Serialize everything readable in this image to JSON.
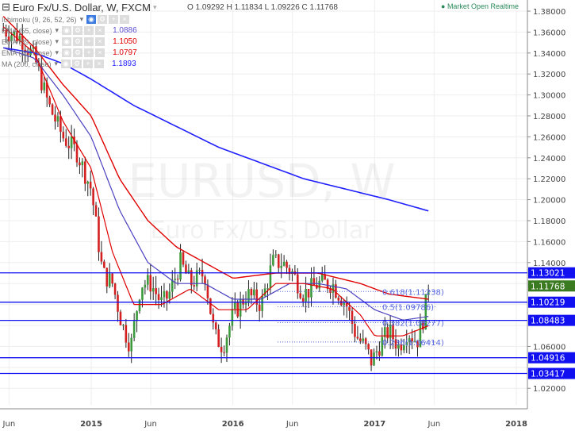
{
  "header": {
    "title": "Euro Fx/U.S. Dollar, W, FXCM",
    "ohlc": "O 1.09292  H 1.11834  L 1.09226  C 1.11768",
    "status": "Market Open  Realtime"
  },
  "indicators": [
    {
      "label": "Ichimoku (9, 26, 52, 26)",
      "value": ""
    },
    {
      "label": "EMA (55, close)",
      "value": "1.0886",
      "color": "#5a4fcf"
    },
    {
      "label": "EMA (89, close)",
      "value": "1.1050",
      "color": "#e00000"
    },
    {
      "label": "EMA (21, close)",
      "value": "1.0797",
      "color": "#e00000"
    },
    {
      "label": "MA (200, close)",
      "value": "1.1893",
      "color": "#2020ff"
    }
  ],
  "watermark": {
    "symbol": "EURUSD, W",
    "name": "Euro Fx/U.S. Dollar"
  },
  "price_axis": [
    "1.38000",
    "1.36000",
    "1.34000",
    "1.32000",
    "1.30000",
    "1.28000",
    "1.26000",
    "1.24000",
    "1.22000",
    "1.20000",
    "1.18000",
    "1.16000",
    "1.14000",
    "1.06000",
    "1.02000"
  ],
  "time_axis": [
    {
      "label": "Jun",
      "date": 2014.42
    },
    {
      "label": "2015",
      "date": 2015.0
    },
    {
      "label": "Jun",
      "date": 2015.42
    },
    {
      "label": "2016",
      "date": 2016.0
    },
    {
      "label": "Jun",
      "date": 2016.42
    },
    {
      "label": "2017",
      "date": 2017.0
    },
    {
      "label": "Jun",
      "date": 2017.42
    },
    {
      "label": "2018",
      "date": 2018.0
    }
  ],
  "levels": [
    {
      "value": "1.13021",
      "color": "#1010f0"
    },
    {
      "value": "1.11768",
      "color": "#3a7a20",
      "current": true
    },
    {
      "value": "1.10219",
      "color": "#1010f0"
    },
    {
      "value": "1.08483",
      "color": "#1010f0"
    },
    {
      "value": "1.04916",
      "color": "#1010f0"
    },
    {
      "value": "1.03417",
      "color": "#1010f0"
    }
  ],
  "fib": [
    {
      "label": "0.618(1.11238)"
    },
    {
      "label": "0.5(1.09786)"
    },
    {
      "label": "0.382(1.08277)"
    },
    {
      "label": "0.236(1.06414)"
    }
  ],
  "chart_data": {
    "type": "candlestick",
    "price_anchors": [
      [
        2014.38,
        1.362
      ],
      [
        2014.5,
        1.355
      ],
      [
        2014.6,
        1.335
      ],
      [
        2014.7,
        1.29
      ],
      [
        2014.8,
        1.26
      ],
      [
        2014.9,
        1.245
      ],
      [
        2015.0,
        1.21
      ],
      [
        2015.08,
        1.13
      ],
      [
        2015.15,
        1.12
      ],
      [
        2015.22,
        1.08
      ],
      [
        2015.28,
        1.06
      ],
      [
        2015.35,
        1.12
      ],
      [
        2015.42,
        1.12
      ],
      [
        2015.5,
        1.1
      ],
      [
        2015.55,
        1.11
      ],
      [
        2015.63,
        1.14
      ],
      [
        2015.7,
        1.12
      ],
      [
        2015.8,
        1.13
      ],
      [
        2015.87,
        1.07
      ],
      [
        2015.93,
        1.06
      ],
      [
        2016.0,
        1.09
      ],
      [
        2016.1,
        1.11
      ],
      [
        2016.2,
        1.1
      ],
      [
        2016.28,
        1.14
      ],
      [
        2016.35,
        1.14
      ],
      [
        2016.42,
        1.13
      ],
      [
        2016.5,
        1.11
      ],
      [
        2016.6,
        1.12
      ],
      [
        2016.7,
        1.12
      ],
      [
        2016.8,
        1.1
      ],
      [
        2016.87,
        1.07
      ],
      [
        2016.93,
        1.06
      ],
      [
        2016.98,
        1.045
      ],
      [
        2017.03,
        1.06
      ],
      [
        2017.1,
        1.075
      ],
      [
        2017.17,
        1.06
      ],
      [
        2017.23,
        1.075
      ],
      [
        2017.3,
        1.065
      ],
      [
        2017.35,
        1.09
      ],
      [
        2017.38,
        1.1177
      ]
    ],
    "ema21": [
      [
        2014.38,
        1.365
      ],
      [
        2014.6,
        1.34
      ],
      [
        2014.8,
        1.275
      ],
      [
        2015.0,
        1.23
      ],
      [
        2015.15,
        1.15
      ],
      [
        2015.3,
        1.1
      ],
      [
        2015.5,
        1.1
      ],
      [
        2015.7,
        1.115
      ],
      [
        2015.9,
        1.095
      ],
      [
        2016.1,
        1.095
      ],
      [
        2016.3,
        1.12
      ],
      [
        2016.5,
        1.12
      ],
      [
        2016.7,
        1.115
      ],
      [
        2016.9,
        1.09
      ],
      [
        2017.0,
        1.07
      ],
      [
        2017.2,
        1.07
      ],
      [
        2017.38,
        1.0797
      ]
    ],
    "ema55": [
      [
        2014.38,
        1.345
      ],
      [
        2014.6,
        1.335
      ],
      [
        2014.8,
        1.3
      ],
      [
        2015.0,
        1.26
      ],
      [
        2015.2,
        1.19
      ],
      [
        2015.4,
        1.14
      ],
      [
        2015.6,
        1.12
      ],
      [
        2015.8,
        1.12
      ],
      [
        2016.0,
        1.105
      ],
      [
        2016.2,
        1.105
      ],
      [
        2016.4,
        1.12
      ],
      [
        2016.6,
        1.12
      ],
      [
        2016.8,
        1.115
      ],
      [
        2017.0,
        1.095
      ],
      [
        2017.2,
        1.085
      ],
      [
        2017.38,
        1.0886
      ]
    ],
    "ema89": [
      [
        2014.38,
        1.375
      ],
      [
        2014.6,
        1.345
      ],
      [
        2014.8,
        1.31
      ],
      [
        2015.0,
        1.28
      ],
      [
        2015.2,
        1.22
      ],
      [
        2015.4,
        1.18
      ],
      [
        2015.6,
        1.155
      ],
      [
        2015.8,
        1.14
      ],
      [
        2016.0,
        1.125
      ],
      [
        2016.3,
        1.13
      ],
      [
        2016.6,
        1.13
      ],
      [
        2016.9,
        1.12
      ],
      [
        2017.1,
        1.11
      ],
      [
        2017.38,
        1.105
      ]
    ],
    "ma200": [
      [
        2014.38,
        1.345
      ],
      [
        2014.6,
        1.34
      ],
      [
        2014.8,
        1.33
      ],
      [
        2015.0,
        1.315
      ],
      [
        2015.3,
        1.29
      ],
      [
        2015.6,
        1.27
      ],
      [
        2015.9,
        1.25
      ],
      [
        2016.2,
        1.235
      ],
      [
        2016.5,
        1.22
      ],
      [
        2016.8,
        1.21
      ],
      [
        2017.1,
        1.2
      ],
      [
        2017.38,
        1.1893
      ]
    ],
    "ylim": [
      1.01,
      1.39
    ]
  }
}
